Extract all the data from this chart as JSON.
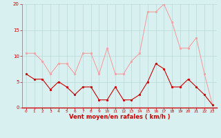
{
  "x": [
    0,
    1,
    2,
    3,
    4,
    5,
    6,
    7,
    8,
    9,
    10,
    11,
    12,
    13,
    14,
    15,
    16,
    17,
    18,
    19,
    20,
    21,
    22,
    23
  ],
  "rafales": [
    10.5,
    10.5,
    9.0,
    6.5,
    8.5,
    8.5,
    6.5,
    10.5,
    10.5,
    6.5,
    11.5,
    6.5,
    6.5,
    9.0,
    10.5,
    18.5,
    18.5,
    20.0,
    16.5,
    11.5,
    11.5,
    13.5,
    6.5,
    0.5
  ],
  "moyen": [
    6.5,
    5.5,
    5.5,
    3.5,
    5.0,
    4.0,
    2.5,
    4.0,
    4.0,
    1.5,
    1.5,
    4.0,
    1.5,
    1.5,
    2.5,
    5.0,
    8.5,
    7.5,
    4.0,
    4.0,
    5.5,
    4.0,
    2.5,
    0.5
  ],
  "line_color_rafales": "#f4a0a0",
  "line_color_moyen": "#cc0000",
  "bg_color": "#d8f0f0",
  "grid_color": "#b8d8d8",
  "xlabel": "Vent moyen/en rafales ( km/h )",
  "xlabel_color": "#cc0000",
  "tick_color": "#cc0000",
  "axis_color": "#cc0000",
  "ylim": [
    0,
    20
  ],
  "xlim": [
    -0.5,
    23.5
  ],
  "yticks": [
    0,
    5,
    10,
    15,
    20
  ],
  "xticks": [
    0,
    1,
    2,
    3,
    4,
    5,
    6,
    7,
    8,
    9,
    10,
    11,
    12,
    13,
    14,
    15,
    16,
    17,
    18,
    19,
    20,
    21,
    22,
    23
  ]
}
